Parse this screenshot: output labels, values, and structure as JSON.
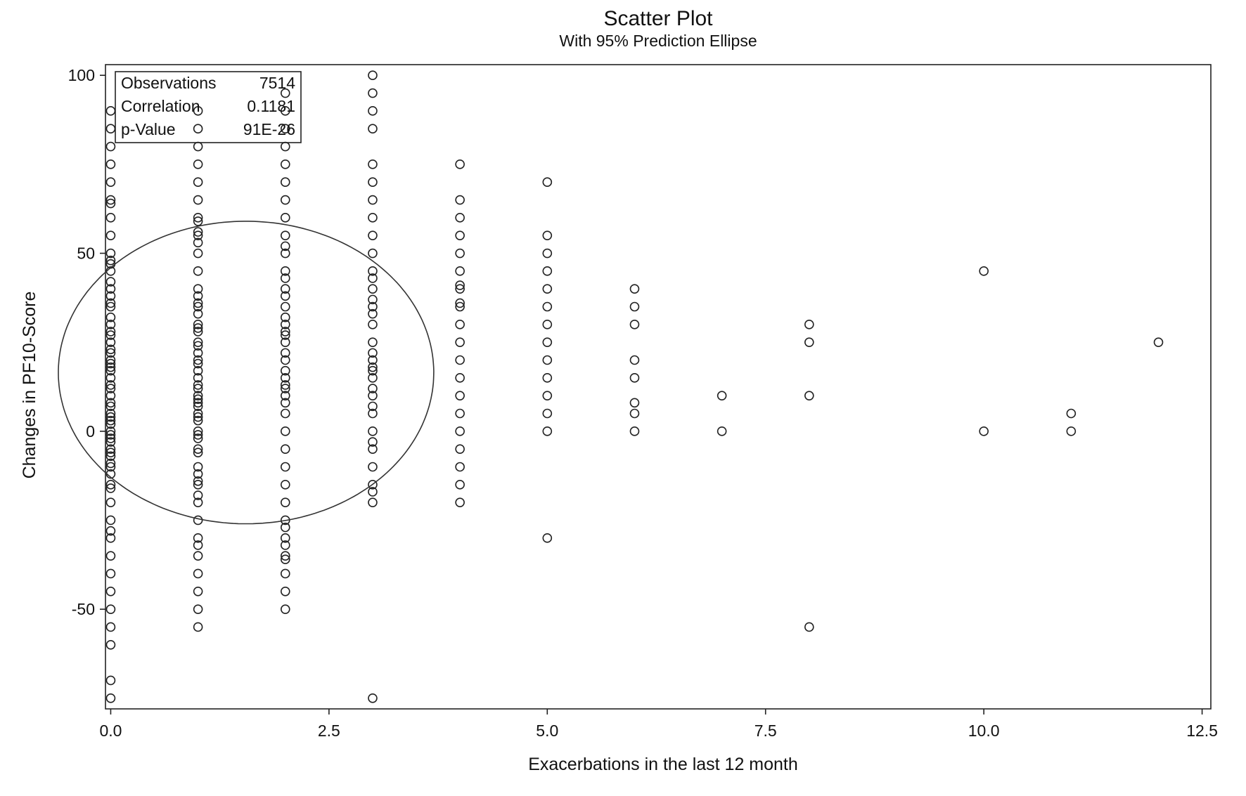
{
  "chart_data": {
    "type": "scatter",
    "title": "Scatter Plot",
    "subtitle": "With 95% Prediction Ellipse",
    "xlabel": "Exacerbations in the last 12 month",
    "ylabel": "Changes in PF10-Score",
    "xlim": [
      -0.06,
      12.6
    ],
    "ylim": [
      -78,
      103
    ],
    "xticks": [
      "0.0",
      "2.5",
      "5.0",
      "7.5",
      "10.0",
      "12.5"
    ],
    "xtick_values": [
      0,
      2.5,
      5,
      7.5,
      10,
      12.5
    ],
    "yticks": [
      "100",
      "50",
      "0",
      "-50"
    ],
    "ytick_values": [
      100,
      50,
      0,
      -50
    ],
    "grid": false,
    "stats": {
      "rows": [
        {
          "label": "Observations",
          "value": "7514"
        },
        {
          "label": "Correlation",
          "value": "0.1181"
        },
        {
          "label": "p-Value",
          "value": "91E-26"
        }
      ],
      "placement": "top-left"
    },
    "ellipse": {
      "label": "95% Prediction Ellipse",
      "center": [
        1.55,
        16.5
      ],
      "semi_axis_x": 2.15,
      "semi_axis_y": 42.5,
      "rotation_deg": -2.4
    },
    "series": [
      {
        "points": [
          [
            0,
            90
          ],
          [
            0,
            85
          ],
          [
            0,
            80
          ],
          [
            0,
            75
          ],
          [
            0,
            70
          ],
          [
            0,
            65
          ],
          [
            0,
            64
          ],
          [
            0,
            60
          ],
          [
            0,
            55
          ],
          [
            0,
            50
          ],
          [
            0,
            48
          ],
          [
            0,
            47
          ],
          [
            0,
            45
          ],
          [
            0,
            42
          ],
          [
            0,
            40
          ],
          [
            0,
            38
          ],
          [
            0,
            36
          ],
          [
            0,
            35
          ],
          [
            0,
            32
          ],
          [
            0,
            30
          ],
          [
            0,
            28
          ],
          [
            0,
            27
          ],
          [
            0,
            25
          ],
          [
            0,
            23
          ],
          [
            0,
            22
          ],
          [
            0,
            20
          ],
          [
            0,
            19
          ],
          [
            0,
            18
          ],
          [
            0,
            17
          ],
          [
            0,
            15
          ],
          [
            0,
            13
          ],
          [
            0,
            12
          ],
          [
            0,
            10
          ],
          [
            0,
            8
          ],
          [
            0,
            7
          ],
          [
            0,
            5
          ],
          [
            0,
            4
          ],
          [
            0,
            3
          ],
          [
            0,
            2
          ],
          [
            0,
            0
          ],
          [
            0,
            -1
          ],
          [
            0,
            -2
          ],
          [
            0,
            -3
          ],
          [
            0,
            -5
          ],
          [
            0,
            -6
          ],
          [
            0,
            -7
          ],
          [
            0,
            -9
          ],
          [
            0,
            -10
          ],
          [
            0,
            -12
          ],
          [
            0,
            -15
          ],
          [
            0,
            -16
          ],
          [
            0,
            -20
          ],
          [
            0,
            -25
          ],
          [
            0,
            -28
          ],
          [
            0,
            -30
          ],
          [
            0,
            -35
          ],
          [
            0,
            -40
          ],
          [
            0,
            -45
          ],
          [
            0,
            -50
          ],
          [
            0,
            -55
          ],
          [
            0,
            -60
          ],
          [
            0,
            -70
          ],
          [
            0,
            -75
          ],
          [
            1,
            90
          ],
          [
            1,
            85
          ],
          [
            1,
            80
          ],
          [
            1,
            75
          ],
          [
            1,
            70
          ],
          [
            1,
            65
          ],
          [
            1,
            60
          ],
          [
            1,
            59
          ],
          [
            1,
            56
          ],
          [
            1,
            55
          ],
          [
            1,
            53
          ],
          [
            1,
            50
          ],
          [
            1,
            45
          ],
          [
            1,
            40
          ],
          [
            1,
            38
          ],
          [
            1,
            36
          ],
          [
            1,
            35
          ],
          [
            1,
            33
          ],
          [
            1,
            30
          ],
          [
            1,
            29
          ],
          [
            1,
            28
          ],
          [
            1,
            25
          ],
          [
            1,
            24
          ],
          [
            1,
            22
          ],
          [
            1,
            20
          ],
          [
            1,
            19
          ],
          [
            1,
            17
          ],
          [
            1,
            15
          ],
          [
            1,
            13
          ],
          [
            1,
            12
          ],
          [
            1,
            10
          ],
          [
            1,
            9
          ],
          [
            1,
            8
          ],
          [
            1,
            7
          ],
          [
            1,
            5
          ],
          [
            1,
            4
          ],
          [
            1,
            3
          ],
          [
            1,
            0
          ],
          [
            1,
            -1
          ],
          [
            1,
            -2
          ],
          [
            1,
            -5
          ],
          [
            1,
            -6
          ],
          [
            1,
            -10
          ],
          [
            1,
            -12
          ],
          [
            1,
            -14
          ],
          [
            1,
            -15
          ],
          [
            1,
            -18
          ],
          [
            1,
            -20
          ],
          [
            1,
            -25
          ],
          [
            1,
            -30
          ],
          [
            1,
            -32
          ],
          [
            1,
            -35
          ],
          [
            1,
            -40
          ],
          [
            1,
            -45
          ],
          [
            1,
            -50
          ],
          [
            1,
            -55
          ],
          [
            2,
            95
          ],
          [
            2,
            90
          ],
          [
            2,
            85
          ],
          [
            2,
            80
          ],
          [
            2,
            75
          ],
          [
            2,
            70
          ],
          [
            2,
            65
          ],
          [
            2,
            60
          ],
          [
            2,
            55
          ],
          [
            2,
            52
          ],
          [
            2,
            50
          ],
          [
            2,
            45
          ],
          [
            2,
            43
          ],
          [
            2,
            40
          ],
          [
            2,
            38
          ],
          [
            2,
            35
          ],
          [
            2,
            32
          ],
          [
            2,
            30
          ],
          [
            2,
            28
          ],
          [
            2,
            27
          ],
          [
            2,
            25
          ],
          [
            2,
            22
          ],
          [
            2,
            20
          ],
          [
            2,
            17
          ],
          [
            2,
            15
          ],
          [
            2,
            13
          ],
          [
            2,
            12
          ],
          [
            2,
            10
          ],
          [
            2,
            8
          ],
          [
            2,
            5
          ],
          [
            2,
            0
          ],
          [
            2,
            -5
          ],
          [
            2,
            -10
          ],
          [
            2,
            -15
          ],
          [
            2,
            -20
          ],
          [
            2,
            -25
          ],
          [
            2,
            -27
          ],
          [
            2,
            -30
          ],
          [
            2,
            -32
          ],
          [
            2,
            -35
          ],
          [
            2,
            -36
          ],
          [
            2,
            -40
          ],
          [
            2,
            -45
          ],
          [
            2,
            -50
          ],
          [
            3,
            100
          ],
          [
            3,
            95
          ],
          [
            3,
            90
          ],
          [
            3,
            85
          ],
          [
            3,
            75
          ],
          [
            3,
            70
          ],
          [
            3,
            65
          ],
          [
            3,
            60
          ],
          [
            3,
            55
          ],
          [
            3,
            50
          ],
          [
            3,
            45
          ],
          [
            3,
            43
          ],
          [
            3,
            40
          ],
          [
            3,
            37
          ],
          [
            3,
            35
          ],
          [
            3,
            33
          ],
          [
            3,
            30
          ],
          [
            3,
            25
          ],
          [
            3,
            22
          ],
          [
            3,
            20
          ],
          [
            3,
            18
          ],
          [
            3,
            17
          ],
          [
            3,
            15
          ],
          [
            3,
            12
          ],
          [
            3,
            10
          ],
          [
            3,
            7
          ],
          [
            3,
            5
          ],
          [
            3,
            0
          ],
          [
            3,
            -3
          ],
          [
            3,
            -5
          ],
          [
            3,
            -10
          ],
          [
            3,
            -15
          ],
          [
            3,
            -17
          ],
          [
            3,
            -20
          ],
          [
            3,
            -75
          ],
          [
            4,
            75
          ],
          [
            4,
            65
          ],
          [
            4,
            60
          ],
          [
            4,
            55
          ],
          [
            4,
            50
          ],
          [
            4,
            45
          ],
          [
            4,
            41
          ],
          [
            4,
            40
          ],
          [
            4,
            36
          ],
          [
            4,
            35
          ],
          [
            4,
            30
          ],
          [
            4,
            25
          ],
          [
            4,
            20
          ],
          [
            4,
            15
          ],
          [
            4,
            10
          ],
          [
            4,
            5
          ],
          [
            4,
            0
          ],
          [
            4,
            -5
          ],
          [
            4,
            -10
          ],
          [
            4,
            -15
          ],
          [
            4,
            -20
          ],
          [
            5,
            70
          ],
          [
            5,
            55
          ],
          [
            5,
            50
          ],
          [
            5,
            45
          ],
          [
            5,
            40
          ],
          [
            5,
            35
          ],
          [
            5,
            30
          ],
          [
            5,
            25
          ],
          [
            5,
            20
          ],
          [
            5,
            15
          ],
          [
            5,
            10
          ],
          [
            5,
            5
          ],
          [
            5,
            0
          ],
          [
            5,
            -30
          ],
          [
            6,
            40
          ],
          [
            6,
            35
          ],
          [
            6,
            30
          ],
          [
            6,
            20
          ],
          [
            6,
            15
          ],
          [
            6,
            8
          ],
          [
            6,
            5
          ],
          [
            6,
            0
          ],
          [
            7,
            10
          ],
          [
            7,
            0
          ],
          [
            8,
            30
          ],
          [
            8,
            25
          ],
          [
            8,
            10
          ],
          [
            8,
            -55
          ],
          [
            10,
            45
          ],
          [
            10,
            0
          ],
          [
            11,
            5
          ],
          [
            11,
            0
          ],
          [
            12,
            25
          ]
        ]
      }
    ]
  }
}
